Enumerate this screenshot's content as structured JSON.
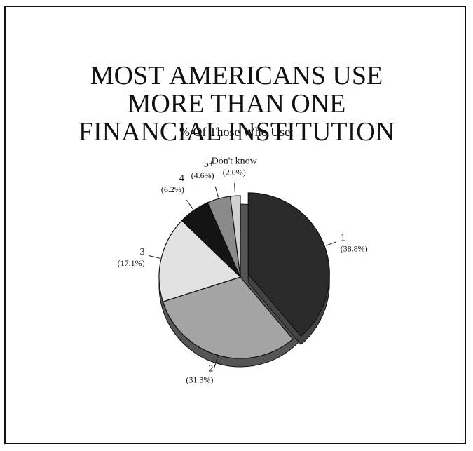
{
  "chart_data": {
    "type": "pie",
    "title": "MOST AMERICANS USE MORE THAN ONE FINANCIAL INSTITUTION",
    "subtitle": "% Of Those Who Use:",
    "categories": [
      "1",
      "2",
      "3",
      "4",
      "5+",
      "Don't know"
    ],
    "values": [
      38.8,
      31.3,
      17.1,
      6.2,
      4.6,
      2.0
    ],
    "value_labels": [
      "(38.8%)",
      "(31.3%)",
      "(17.1%)",
      "(6.2%)",
      "(4.6%)",
      "(2.0%)"
    ],
    "colors": [
      "#2a2a2a",
      "#a4a4a4",
      "#e2e2e2",
      "#141414",
      "#8a8a8a",
      "#d0d0d0"
    ],
    "exploded": [
      true,
      false,
      false,
      false,
      false,
      false
    ]
  }
}
